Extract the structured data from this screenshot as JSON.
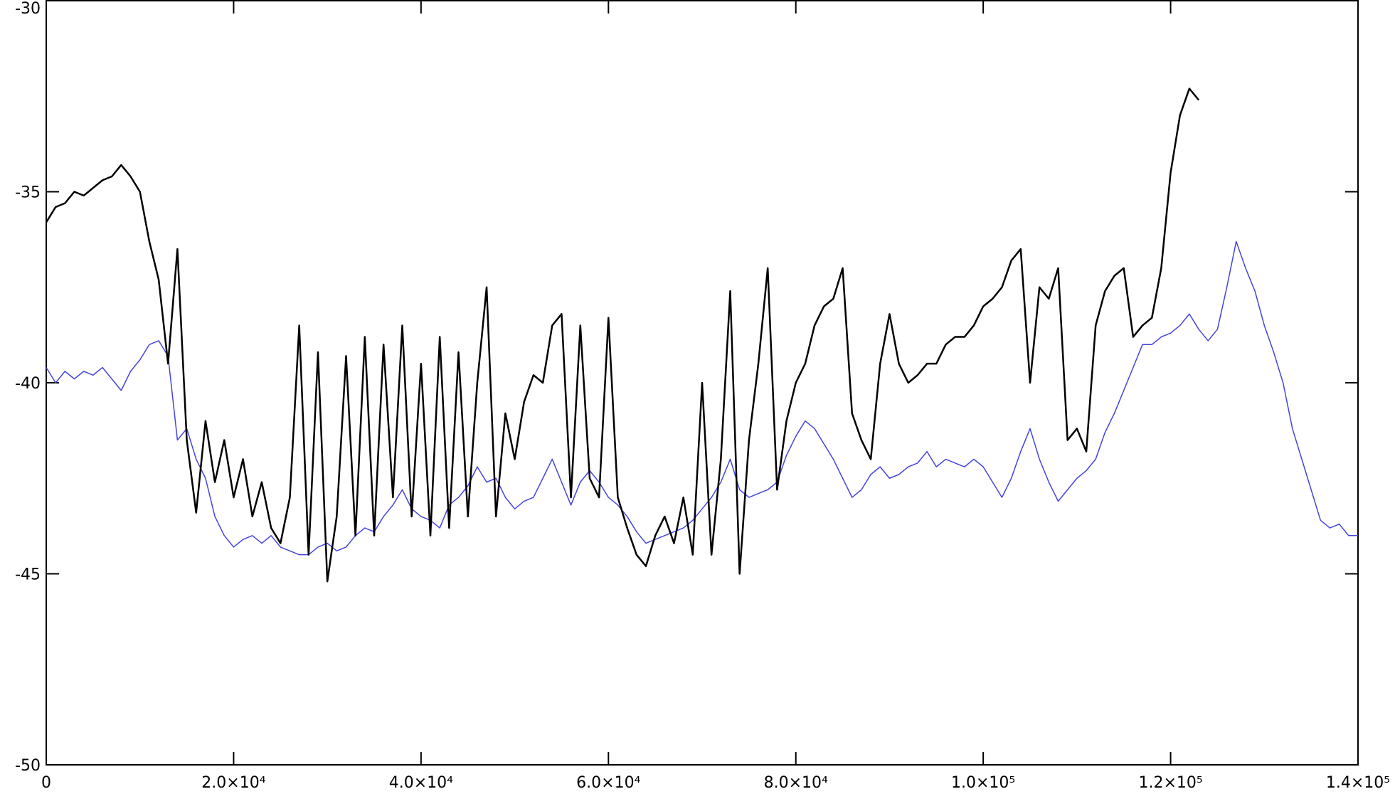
{
  "chart_data": {
    "type": "line",
    "x": [
      0,
      1000,
      2000,
      3000,
      4000,
      5000,
      6000,
      7000,
      8000,
      9000,
      10000,
      11000,
      12000,
      13000,
      14000,
      15000,
      16000,
      17000,
      18000,
      19000,
      20000,
      21000,
      22000,
      23000,
      24000,
      25000,
      26000,
      27000,
      28000,
      29000,
      30000,
      31000,
      32000,
      33000,
      34000,
      35000,
      36000,
      37000,
      38000,
      39000,
      40000,
      41000,
      42000,
      43000,
      44000,
      45000,
      46000,
      47000,
      48000,
      49000,
      50000,
      51000,
      52000,
      53000,
      54000,
      55000,
      56000,
      57000,
      58000,
      59000,
      60000,
      61000,
      62000,
      63000,
      64000,
      65000,
      66000,
      67000,
      68000,
      69000,
      70000,
      71000,
      72000,
      73000,
      74000,
      75000,
      76000,
      77000,
      78000,
      79000,
      80000,
      81000,
      82000,
      83000,
      84000,
      85000,
      86000,
      87000,
      88000,
      89000,
      90000,
      91000,
      92000,
      93000,
      94000,
      95000,
      96000,
      97000,
      98000,
      99000,
      100000,
      101000,
      102000,
      103000,
      104000,
      105000,
      106000,
      107000,
      108000,
      109000,
      110000,
      111000,
      112000,
      113000,
      114000,
      115000,
      116000,
      117000,
      118000,
      119000,
      120000,
      121000,
      122000,
      123000,
      124000,
      125000,
      126000,
      127000,
      128000,
      129000,
      130000,
      131000,
      132000,
      133000,
      134000,
      135000,
      136000,
      137000,
      138000,
      139000,
      140000
    ],
    "series": [
      {
        "color": "#000000",
        "values": [
          -35.8,
          -35.4,
          -35.3,
          -35.0,
          -35.1,
          -34.9,
          -34.7,
          -34.6,
          -34.3,
          -34.6,
          -35.0,
          -36.3,
          -37.3,
          -39.5,
          -36.5,
          -41.5,
          -43.4,
          -41.0,
          -42.6,
          -41.5,
          -43.0,
          -42.0,
          -43.5,
          -42.6,
          -43.8,
          -44.2,
          -43.0,
          -38.5,
          -44.5,
          -39.2,
          -45.2,
          -43.5,
          -39.3,
          -44.0,
          -38.8,
          -44.0,
          -39.0,
          -43.0,
          -38.5,
          -43.5,
          -39.5,
          -44.0,
          -38.8,
          -43.8,
          -39.2,
          -43.5,
          -40.0,
          -37.5,
          -43.5,
          -40.8,
          -42.0,
          -40.5,
          -39.8,
          -40.0,
          -38.5,
          -38.2,
          -43.0,
          -38.5,
          -42.5,
          -43.0,
          -38.3,
          -43.0,
          -43.8,
          -44.5,
          -44.8,
          -44.0,
          -43.5,
          -44.2,
          -43.0,
          -44.5,
          -40.0,
          -44.5,
          -42.0,
          -37.6,
          -45.0,
          -41.5,
          -39.5,
          -37.0,
          -42.8,
          -41.0,
          -40.0,
          -39.5,
          -38.5,
          -38.0,
          -37.8,
          -37.0,
          -40.8,
          -41.5,
          -42.0,
          -39.5,
          -38.2,
          -39.5,
          -40.0,
          -39.8,
          -39.5,
          -39.5,
          -39.0,
          -38.8,
          -38.8,
          -38.5,
          -38.0,
          -37.8,
          -37.5,
          -36.8,
          -36.5,
          -40.0,
          -37.5,
          -37.8,
          -37.0,
          -41.5,
          -41.2,
          -41.8,
          -38.5,
          -37.6,
          -37.2,
          -37.0,
          -38.8,
          -38.5,
          -38.3,
          -37.0,
          -34.5,
          -33.0,
          -32.3,
          -32.6,
          null,
          null,
          null,
          null,
          null,
          null,
          null,
          null,
          null,
          null,
          null,
          null,
          null,
          null,
          null,
          null,
          null
        ]
      },
      {
        "color": "#4444dd",
        "values": [
          -39.6,
          -40.0,
          -39.7,
          -39.9,
          -39.7,
          -39.8,
          -39.6,
          -39.9,
          -40.2,
          -39.7,
          -39.4,
          -39.0,
          -38.9,
          -39.3,
          -41.5,
          -41.2,
          -42.0,
          -42.5,
          -43.5,
          -44.0,
          -44.3,
          -44.1,
          -44.0,
          -44.2,
          -44.0,
          -44.3,
          -44.4,
          -44.5,
          -44.5,
          -44.3,
          -44.2,
          -44.4,
          -44.3,
          -44.0,
          -43.8,
          -43.9,
          -43.5,
          -43.2,
          -42.8,
          -43.3,
          -43.5,
          -43.6,
          -43.8,
          -43.2,
          -43.0,
          -42.7,
          -42.2,
          -42.6,
          -42.5,
          -43.0,
          -43.3,
          -43.1,
          -43.0,
          -42.5,
          -42.0,
          -42.6,
          -43.2,
          -42.6,
          -42.3,
          -42.6,
          -43.0,
          -43.2,
          -43.5,
          -43.9,
          -44.2,
          -44.1,
          -44.0,
          -43.9,
          -43.8,
          -43.6,
          -43.3,
          -43.0,
          -42.6,
          -42.0,
          -42.8,
          -43.0,
          -42.9,
          -42.8,
          -42.6,
          -41.9,
          -41.4,
          -41.0,
          -41.2,
          -41.6,
          -42.0,
          -42.5,
          -43.0,
          -42.8,
          -42.4,
          -42.2,
          -42.5,
          -42.4,
          -42.2,
          -42.1,
          -41.8,
          -42.2,
          -42.0,
          -42.1,
          -42.2,
          -42.0,
          -42.2,
          -42.6,
          -43.0,
          -42.5,
          -41.8,
          -41.2,
          -42.0,
          -42.6,
          -43.1,
          -42.8,
          -42.5,
          -42.3,
          -42.0,
          -41.3,
          -40.8,
          -40.2,
          -39.6,
          -39.0,
          -39.0,
          -38.8,
          -38.7,
          -38.5,
          -38.2,
          -38.6,
          -38.9,
          -38.6,
          -37.5,
          -36.3,
          -37.0,
          -37.6,
          -38.5,
          -39.2,
          -40.0,
          -41.2,
          -42.0,
          -42.8,
          -43.6,
          -43.8,
          -43.7,
          -44.0,
          -44.0
        ]
      }
    ],
    "xlim": [
      0,
      140000
    ],
    "xticks": [
      0,
      {
        "value": 20000,
        "label": "2.0×10⁴"
      },
      {
        "value": 40000,
        "label": "4.0×10⁴"
      },
      {
        "value": 60000,
        "label": "6.0×10⁴"
      },
      {
        "value": 80000,
        "label": "8.0×10⁴"
      },
      {
        "value": 100000,
        "label": "1.0×10⁵"
      },
      {
        "value": 120000,
        "label": "1.2×10⁵"
      },
      {
        "value": 140000,
        "label": "1.4×10⁵"
      }
    ],
    "ylim": [
      -50,
      -30
    ],
    "yticks": [
      -50,
      -45,
      -40,
      -35,
      -30
    ]
  }
}
